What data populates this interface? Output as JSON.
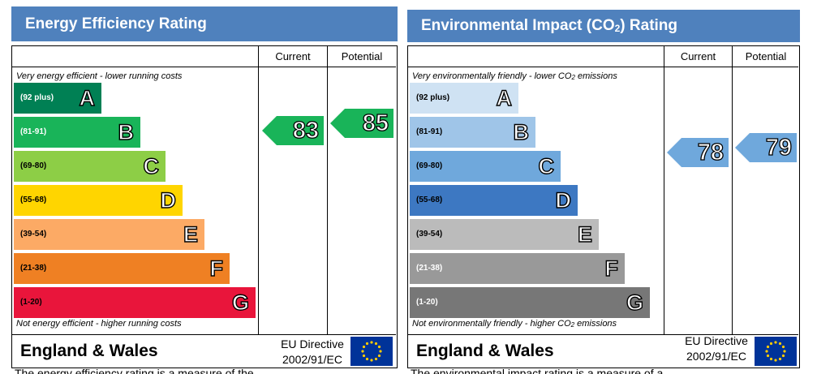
{
  "chart_data": [
    {
      "type": "bar",
      "title": "Energy Efficiency Rating",
      "column_headers": [
        "Current",
        "Potential"
      ],
      "top_note": "Very energy efficient - lower running costs",
      "bottom_note": "Not energy efficient - higher running costs",
      "bands": [
        {
          "range": "(92 plus)",
          "letter": "A",
          "color": "#008054",
          "text_color": "#ffffff"
        },
        {
          "range": "(81-91)",
          "letter": "B",
          "color": "#19b459",
          "text_color": "#ffffff"
        },
        {
          "range": "(69-80)",
          "letter": "C",
          "color": "#8dce46",
          "text_color": "#000000"
        },
        {
          "range": "(55-68)",
          "letter": "D",
          "color": "#ffd500",
          "text_color": "#000000"
        },
        {
          "range": "(39-54)",
          "letter": "E",
          "color": "#fcaa65",
          "text_color": "#000000"
        },
        {
          "range": "(21-38)",
          "letter": "F",
          "color": "#ef8023",
          "text_color": "#000000"
        },
        {
          "range": "(1-20)",
          "letter": "G",
          "color": "#e9153b",
          "text_color": "#000000"
        }
      ],
      "current": 83,
      "potential": 85,
      "arrow_color": "#19b459",
      "footer": {
        "region": "England & Wales",
        "directive_line1": "EU Directive",
        "directive_line2": "2002/91/EC"
      },
      "below_text": "The energy efficiency rating is a measure of the"
    },
    {
      "type": "bar",
      "title": "Environmental Impact (CO",
      "title_sub": "2",
      "title_end": ") Rating",
      "column_headers": [
        "Current",
        "Potential"
      ],
      "top_note": "Very environmentally friendly - lower CO",
      "top_note_sub": "2",
      "top_note_end": " emissions",
      "bottom_note": "Not environmentally friendly - higher CO",
      "bottom_note_sub": "2",
      "bottom_note_end": " emissions",
      "bands": [
        {
          "range": "(92 plus)",
          "letter": "A",
          "color": "#cfe2f3",
          "text_color": "#000000"
        },
        {
          "range": "(81-91)",
          "letter": "B",
          "color": "#9fc5e8",
          "text_color": "#000000"
        },
        {
          "range": "(69-80)",
          "letter": "C",
          "color": "#6fa8dc",
          "text_color": "#000000"
        },
        {
          "range": "(55-68)",
          "letter": "D",
          "color": "#3d78c2",
          "text_color": "#000000"
        },
        {
          "range": "(39-54)",
          "letter": "E",
          "color": "#bbbbbb",
          "text_color": "#000000"
        },
        {
          "range": "(21-38)",
          "letter": "F",
          "color": "#999999",
          "text_color": "#ffffff"
        },
        {
          "range": "(1-20)",
          "letter": "G",
          "color": "#777777",
          "text_color": "#ffffff"
        }
      ],
      "current": 78,
      "potential": 79,
      "arrow_color": "#6fa8dc",
      "footer": {
        "region": "England & Wales",
        "directive_line1": "EU Directive",
        "directive_line2": "2002/91/EC"
      },
      "below_text": "The environmental impact rating is a measure of a"
    }
  ]
}
